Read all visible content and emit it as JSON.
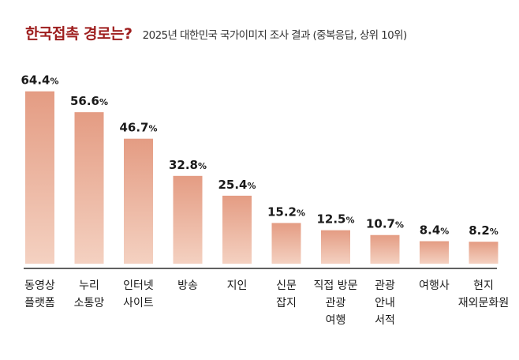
{
  "header": {
    "title": "한국접촉 경로는?",
    "subtitle": "2025년 대한민국 국가이미지 조사 결과 (중복응답, 상위 10위)"
  },
  "colors": {
    "title": "#9e1e1e",
    "bar_top": "#e49c83",
    "bar_bottom": "#f4d1c1",
    "baseline": "#2b2b2b"
  },
  "chart_data": {
    "type": "bar",
    "categories": [
      [
        "동영상",
        "플랫폼"
      ],
      [
        "누리",
        "소통망"
      ],
      [
        "인터넷",
        "사이트"
      ],
      [
        "방송"
      ],
      [
        "지인"
      ],
      [
        "신문",
        "잡지"
      ],
      [
        "직접 방문",
        "관광",
        "여행"
      ],
      [
        "관광",
        "안내",
        "서적"
      ],
      [
        "여행사"
      ],
      [
        "현지",
        "재외문화원"
      ]
    ],
    "values": [
      64.4,
      56.6,
      46.7,
      32.8,
      25.4,
      15.2,
      12.5,
      10.7,
      8.4,
      8.2
    ],
    "unit": "%",
    "ylim": [
      0,
      70
    ],
    "grid": false,
    "legend": "none"
  }
}
